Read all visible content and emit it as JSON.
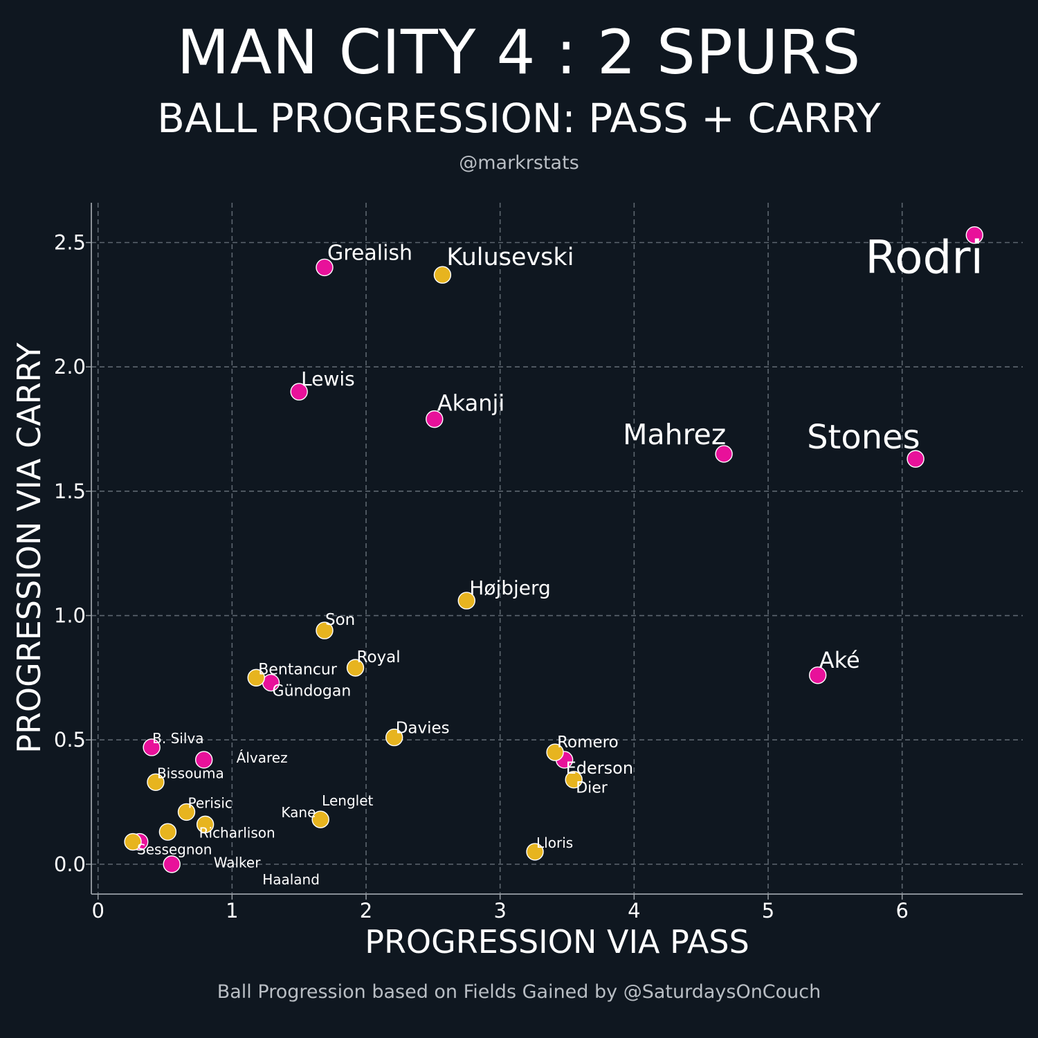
{
  "header": {
    "title": "MAN CITY 4 : 2 SPURS",
    "subtitle": "BALL PROGRESSION: PASS + CARRY",
    "byline": "@markrstats"
  },
  "footer": {
    "note": "Ball Progression based on Fields Gained by @SaturdaysOnCouch"
  },
  "colors": {
    "background": "#0f1720",
    "man_city": "#e8119a",
    "spurs": "#e7b41f",
    "grid": "#5d666f",
    "axis": "#9aa1a7"
  },
  "chart_data": {
    "type": "scatter",
    "xlabel": "PROGRESSION VIA PASS",
    "ylabel": "PROGRESSION VIA CARRY",
    "xlim": [
      -0.05,
      6.9
    ],
    "ylim": [
      -0.12,
      2.66
    ],
    "xticks": [
      "0",
      "1",
      "2",
      "3",
      "4",
      "5",
      "6"
    ],
    "yticks": [
      "0.0",
      "0.5",
      "1.0",
      "1.5",
      "2.0",
      "2.5"
    ],
    "grid": true,
    "series": [
      {
        "team": "man_city",
        "points": [
          {
            "label": "Rodri",
            "x": 6.54,
            "y": 2.53
          },
          {
            "label": "Grealish",
            "x": 1.69,
            "y": 2.4
          },
          {
            "label": "Lewis",
            "x": 1.5,
            "y": 1.9
          },
          {
            "label": "Akanji",
            "x": 2.51,
            "y": 1.79
          },
          {
            "label": "Mahrez",
            "x": 4.67,
            "y": 1.65
          },
          {
            "label": "Stones",
            "x": 6.1,
            "y": 1.63
          },
          {
            "label": "Aké",
            "x": 5.37,
            "y": 0.76
          },
          {
            "label": "Gündogan",
            "x": 1.29,
            "y": 0.73
          },
          {
            "label": "B. Silva",
            "x": 0.4,
            "y": 0.47
          },
          {
            "label": "Álvarez",
            "x": 0.79,
            "y": 0.42
          },
          {
            "label": "Ederson",
            "x": 3.48,
            "y": 0.42
          },
          {
            "label": "Walker",
            "x": 0.31,
            "y": 0.09
          },
          {
            "label": "Haaland",
            "x": 0.55,
            "y": 0.0
          }
        ]
      },
      {
        "team": "spurs",
        "points": [
          {
            "label": "Kulusevski",
            "x": 2.57,
            "y": 2.37
          },
          {
            "label": "Højbjerg",
            "x": 2.75,
            "y": 1.06
          },
          {
            "label": "Son",
            "x": 1.69,
            "y": 0.94
          },
          {
            "label": "Royal",
            "x": 1.92,
            "y": 0.79
          },
          {
            "label": "Bentancur",
            "x": 1.18,
            "y": 0.75
          },
          {
            "label": "Davies",
            "x": 2.21,
            "y": 0.51
          },
          {
            "label": "Romero",
            "x": 3.41,
            "y": 0.45
          },
          {
            "label": "Dier",
            "x": 3.55,
            "y": 0.34
          },
          {
            "label": "Bissouma",
            "x": 0.43,
            "y": 0.33
          },
          {
            "label": "Perisic",
            "x": 0.66,
            "y": 0.21
          },
          {
            "label": "Richarlison",
            "x": 0.8,
            "y": 0.16
          },
          {
            "label": "Lenglet",
            "x": 1.66,
            "y": 0.18
          },
          {
            "label": "Kane",
            "x": 0.52,
            "y": 0.13
          },
          {
            "label": "Sessegnon",
            "x": 0.26,
            "y": 0.09
          },
          {
            "label": "Lloris",
            "x": 3.26,
            "y": 0.05
          }
        ]
      }
    ]
  }
}
